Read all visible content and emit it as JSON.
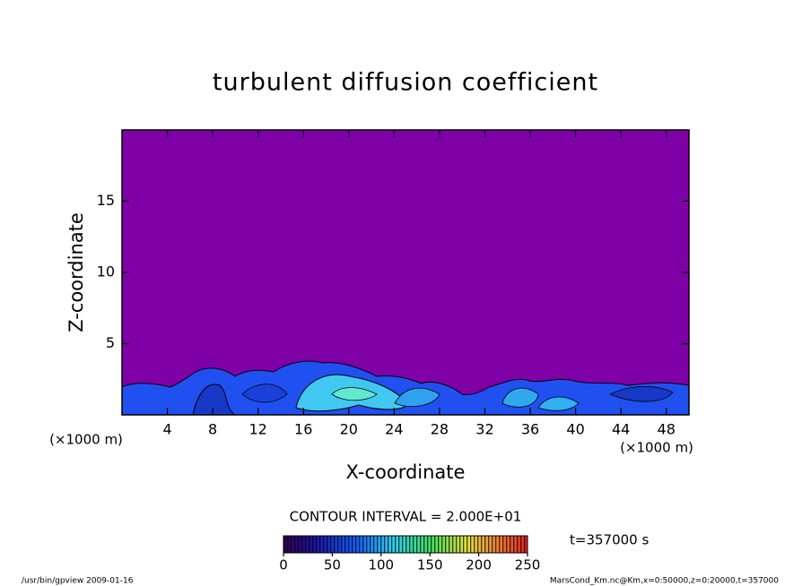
{
  "chart_data": {
    "type": "contour",
    "title": "turbulent diffusion coefficient",
    "x_label": "X-coordinate",
    "y_label": "Z-coordinate",
    "x_unit": "(×1000 m)",
    "y_unit": "(×1000 m)",
    "xlim": [
      0,
      50
    ],
    "xticks": [
      4,
      8,
      12,
      16,
      20,
      24,
      28,
      32,
      36,
      40,
      44,
      48
    ],
    "ylim": [
      0,
      20
    ],
    "yticks": [
      5,
      10,
      15
    ],
    "contour_interval_text": "CONTOUR INTERVAL = 2.000E+01",
    "time_text": "t=357000 s",
    "colorbar_lim": [
      0,
      250
    ],
    "colorbar_ticks": [
      0,
      50,
      100,
      150,
      200,
      250
    ],
    "footer_left": "/usr/bin/gpview  2009-01-16",
    "footer_right": "MarsCond_Km.nc@Km,x=0:50000,z=0:20000,t=357000",
    "background_color": "#8000a8"
  }
}
